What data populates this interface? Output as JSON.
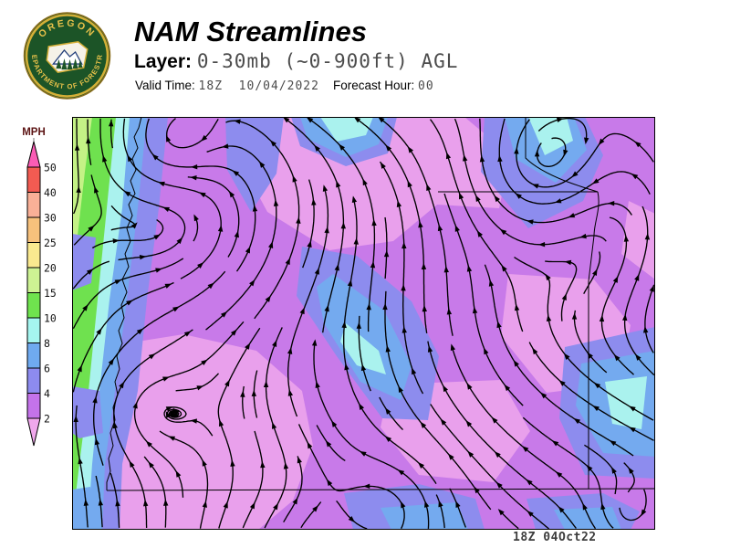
{
  "header": {
    "title": "NAM Streamlines",
    "layer_label": "Layer:",
    "layer_value": "0-30mb (~0-900ft) AGL",
    "valid_time_label": "Valid Time:",
    "valid_time_value": "18Z  10/04/2022",
    "forecast_hour_label": "Forecast Hour:",
    "forecast_hour_value": "00"
  },
  "logo": {
    "top_text": "OREGON",
    "bottom_text": "DEPARTMENT OF FORESTRY",
    "ring_color": "#d4af37",
    "field_color": "#1c5427",
    "text_color": "#e9c24a"
  },
  "legend": {
    "title": "MPH",
    "title_color": "#5c1414",
    "boundaries": [
      "50",
      "40",
      "30",
      "25",
      "20",
      "15",
      "10",
      "8",
      "6",
      "4",
      "2"
    ],
    "above_color": "#fa5cb5",
    "below_color": "#f0a8ec",
    "segments": [
      {
        "range": "40-50",
        "color": "#f25b52"
      },
      {
        "range": "30-40",
        "color": "#f9b097"
      },
      {
        "range": "25-30",
        "color": "#f7c17c"
      },
      {
        "range": "20-25",
        "color": "#fae98f"
      },
      {
        "range": "15-20",
        "color": "#cdf293"
      },
      {
        "range": "10-15",
        "color": "#6fe34e"
      },
      {
        "range": "8-10",
        "color": "#a5f6f0"
      },
      {
        "range": "6-8",
        "color": "#6faaf0"
      },
      {
        "range": "4-6",
        "color": "#8d8bef"
      },
      {
        "range": "2-4",
        "color": "#c473ea"
      }
    ]
  },
  "map": {
    "timestamp": "18Z  04Oct22",
    "shading_colors": {
      "calm_under_2mph": "#e9a0ec",
      "2_4mph": "#c87ae9",
      "4_6mph": "#8d8cee",
      "6_8mph": "#74aaef",
      "8_10mph": "#aaf2ee",
      "10_15mph": "#6fe14f",
      "15_20mph": "#c4f286"
    },
    "streamline_color": "#000000"
  }
}
